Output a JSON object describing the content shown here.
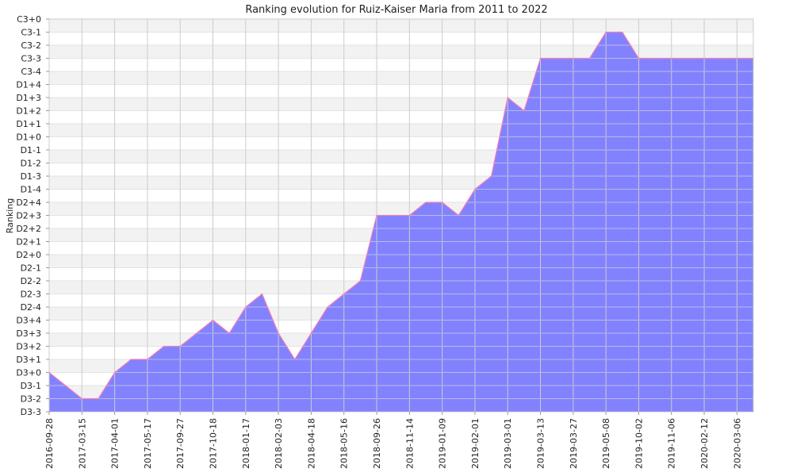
{
  "chart_data": {
    "type": "area",
    "title": "Ranking evolution for Ruiz-Kaiser Maria from 2011 to 2022",
    "xlabel": "",
    "ylabel": "Ranking",
    "grid": true,
    "legend": "none",
    "y_categories": [
      "D3-3",
      "D3-2",
      "D3-1",
      "D3+0",
      "D3+1",
      "D3+2",
      "D3+3",
      "D3+4",
      "D2-4",
      "D2-3",
      "D2-2",
      "D2-1",
      "D2+0",
      "D2+1",
      "D2+2",
      "D2+3",
      "D2+4",
      "D1-4",
      "D1-3",
      "D1-2",
      "D1-1",
      "D1+0",
      "D1+1",
      "D1+2",
      "D1+3",
      "D1+4",
      "C3-4",
      "C3-3",
      "C3-2",
      "C3-1",
      "C3+0"
    ],
    "x_tick_labels": [
      "2016-09-28",
      "2017-03-15",
      "2017-04-01",
      "2017-05-17",
      "2017-09-27",
      "2017-10-18",
      "2018-01-17",
      "2018-02-03",
      "2018-04-18",
      "2018-05-16",
      "2018-09-26",
      "2018-11-14",
      "2019-01-09",
      "2019-02-01",
      "2019-03-01",
      "2019-03-13",
      "2019-03-27",
      "2019-05-08",
      "2019-10-02",
      "2019-11-06",
      "2020-02-12",
      "2020-03-06"
    ],
    "x_index": [
      0,
      1,
      2,
      3,
      4,
      5,
      6,
      7,
      8,
      9,
      10,
      11,
      12,
      13,
      14,
      15,
      16,
      17,
      18,
      19,
      20,
      21,
      22,
      23,
      24,
      25,
      26,
      27,
      28,
      29,
      30,
      31,
      32,
      33,
      34,
      35,
      36,
      37,
      38,
      39,
      40,
      41,
      42,
      43
    ],
    "values": [
      "D3+0",
      "D3-1",
      "D3-2",
      "D3-2",
      "D3+0",
      "D3+1",
      "D3+1",
      "D3+2",
      "D3+2",
      "D3+3",
      "D3+4",
      "D3+3",
      "D2-4",
      "D2-3",
      "D3+3",
      "D3+1",
      "D3+3",
      "D2-4",
      "D2-3",
      "D2-2",
      "D2+3",
      "D2+3",
      "D2+3",
      "D2+4",
      "D2+4",
      "D2+3",
      "D1-4",
      "D1-3",
      "D1+3",
      "D1+2",
      "C3-3",
      "C3-3",
      "C3-3",
      "C3-3",
      "C3-1",
      "C3-1",
      "C3-3",
      "C3-3",
      "C3-3",
      "C3-3",
      "C3-3",
      "C3-3",
      "C3-3",
      "C3-3"
    ],
    "colors": {
      "area_fill": "#7b7bff",
      "area_line": "#f57fb8",
      "grid_line": "#cccccc",
      "band_alt": "#f2f2f2"
    }
  }
}
